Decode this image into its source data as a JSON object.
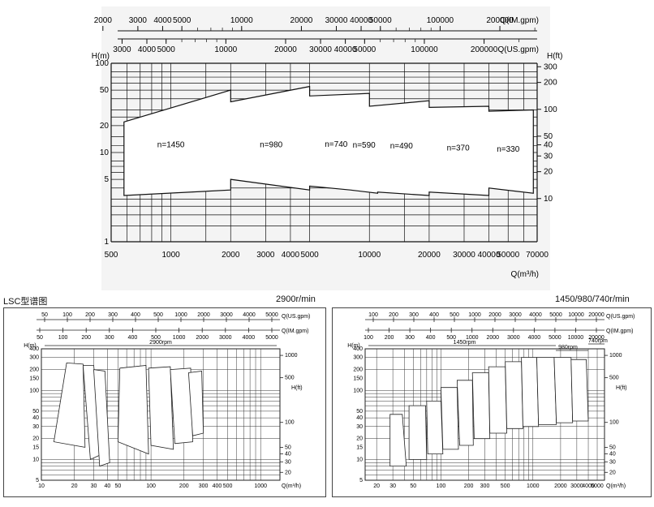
{
  "main_chart": {
    "top_axis_im": {
      "unit_label": "Q(IM.gpm)",
      "ticks": [
        {
          "label": "2000",
          "v": 2000
        },
        {
          "label": "3000",
          "v": 3000
        },
        {
          "label": "4000",
          "v": 4000
        },
        {
          "label": "5000",
          "v": 5000
        },
        {
          "label": "10000",
          "v": 10000
        },
        {
          "label": "20000",
          "v": 20000
        },
        {
          "label": "30000",
          "v": 30000
        },
        {
          "label": "40000",
          "v": 40000
        },
        {
          "label": "50000",
          "v": 50000
        },
        {
          "label": "100000",
          "v": 100000
        },
        {
          "label": "200000",
          "v": 200000
        }
      ]
    },
    "top_axis_us": {
      "unit_label": "Q(US.gpm)",
      "ticks": [
        {
          "label": "3000",
          "v": 3000
        },
        {
          "label": "4000",
          "v": 4000
        },
        {
          "label": "5000",
          "v": 5000
        },
        {
          "label": "10000",
          "v": 10000
        },
        {
          "label": "20000",
          "v": 20000
        },
        {
          "label": "30000",
          "v": 30000
        },
        {
          "label": "40000",
          "v": 40000
        },
        {
          "label": "50000",
          "v": 50000
        },
        {
          "label": "100000",
          "v": 100000
        },
        {
          "label": "200000",
          "v": 200000
        }
      ]
    },
    "y_left": {
      "label": "H(m)",
      "ticks": [
        "1",
        "5",
        "10",
        "20",
        "50",
        "100"
      ]
    },
    "y_right": {
      "label": "H(ft)",
      "ticks": [
        "10",
        "20",
        "30",
        "40",
        "50",
        "100",
        "200",
        "300"
      ]
    },
    "x_axis": {
      "label": "Q(m³/h)",
      "ticks": [
        "500",
        "1000",
        "2000",
        "3000",
        "4000",
        "5000",
        "10000",
        "20000",
        "30000",
        "40000",
        "50000",
        "70000"
      ]
    }
  },
  "chart_data": [
    {
      "type": "area",
      "xlabel": "Q(m³/h)",
      "ylabel": "H(m)",
      "xscale": "log",
      "yscale": "log",
      "xlim": [
        500,
        70000
      ],
      "ylim": [
        1,
        100
      ],
      "series": [
        {
          "name": "n=1450",
          "q_range": [
            580,
            2000
          ],
          "h_top": [
            22,
            50
          ],
          "h_bottom": [
            3.3,
            3.8
          ]
        },
        {
          "name": "n=980",
          "q_range": [
            2000,
            5000
          ],
          "h_top": [
            37,
            55
          ],
          "h_bottom": [
            3.8,
            5
          ]
        },
        {
          "name": "n=740",
          "q_range": [
            5000,
            10000
          ],
          "h_top": [
            43,
            46
          ],
          "h_bottom": [
            3.8,
            4.2
          ]
        },
        {
          "name": "n=590",
          "q_range": [
            8000,
            11000
          ],
          "h_top": [
            40,
            44
          ],
          "h_bottom": [
            3.5,
            3.8
          ]
        },
        {
          "name": "n=490",
          "q_range": [
            11000,
            20000
          ],
          "h_top": [
            33,
            38
          ],
          "h_bottom": [
            3.3,
            3.6
          ]
        },
        {
          "name": "n=370",
          "q_range": [
            20000,
            40000
          ],
          "h_top": [
            32,
            33
          ],
          "h_bottom": [
            3.3,
            3.6
          ]
        },
        {
          "name": "n=330",
          "q_range": [
            40000,
            67000
          ],
          "h_top": [
            29,
            30
          ],
          "h_bottom": [
            3.5,
            4
          ]
        }
      ]
    },
    {
      "type": "area",
      "title": "2900rpm",
      "xlabel": "Q(m³/h)",
      "ylabel": "H(m)",
      "xscale": "log",
      "yscale": "log",
      "xlim": [
        10,
        1500
      ],
      "ylim": [
        5,
        400
      ]
    },
    {
      "type": "area",
      "title": "1450rpm",
      "xlabel": "Q(m³/h)",
      "ylabel": "H(m)",
      "xscale": "log",
      "yscale": "log",
      "xlim": [
        15,
        6000
      ],
      "ylim": [
        5,
        400
      ]
    }
  ],
  "captions": {
    "lsc": "LSC型谱图",
    "rpm_left": "2900r/min",
    "rpm_right": "1450/980/740r/min"
  },
  "small_left": {
    "top_us_label": "Q(US.gpm)",
    "top_im_label": "Q(IM.gpm)",
    "top_us_ticks": [
      "50",
      "100",
      "200",
      "300",
      "400",
      "500",
      "1000",
      "2000",
      "3000",
      "4000",
      "5000"
    ],
    "top_im_ticks": [
      "50",
      "100",
      "200",
      "300",
      "400",
      "500",
      "1000",
      "2000",
      "3000",
      "4000",
      "5000"
    ],
    "band": "2900rpm",
    "y_left_label": "H(m)",
    "y_left_ticks": [
      "5",
      "10",
      "15",
      "20",
      "30",
      "40",
      "50",
      "100",
      "150",
      "200",
      "300",
      "400"
    ],
    "y_right_label": "H(ft)",
    "y_right_ticks": [
      "20",
      "30",
      "40",
      "50",
      "100",
      "500",
      "1000"
    ],
    "x_label": "Q(m³/h)",
    "x_ticks": [
      "10",
      "20",
      "30",
      "40",
      "50",
      "100",
      "200",
      "300",
      "400",
      "500",
      "1000"
    ]
  },
  "small_right": {
    "top_us_label": "Q(US.gpm)",
    "top_im_label": "Q(IM.gpm)",
    "top_us_ticks": [
      "100",
      "200",
      "300",
      "400",
      "500",
      "1000",
      "2000",
      "3000",
      "4000",
      "5000",
      "10000",
      "20000"
    ],
    "top_im_ticks": [
      "100",
      "200",
      "300",
      "400",
      "500",
      "1000",
      "2000",
      "3000",
      "4000",
      "5000",
      "10000",
      "20000"
    ],
    "band": "1450rpm",
    "band2": "980rpm",
    "band3": "740rpm",
    "y_left_label": "H(m)",
    "y_left_ticks": [
      "5",
      "10",
      "15",
      "20",
      "30",
      "40",
      "50",
      "100",
      "150",
      "200",
      "300",
      "400"
    ],
    "y_right_label": "H(ft)",
    "y_right_ticks": [
      "20",
      "30",
      "40",
      "50",
      "100",
      "500",
      "1000"
    ],
    "x_label": "Q(m³/h)",
    "x_ticks": [
      "20",
      "30",
      "50",
      "100",
      "200",
      "300",
      "500",
      "1000",
      "2000",
      "3000",
      "4000",
      "5000"
    ]
  },
  "colors": {
    "line": "#111111",
    "panel": "#f4f4f4",
    "grid": "#222222"
  }
}
